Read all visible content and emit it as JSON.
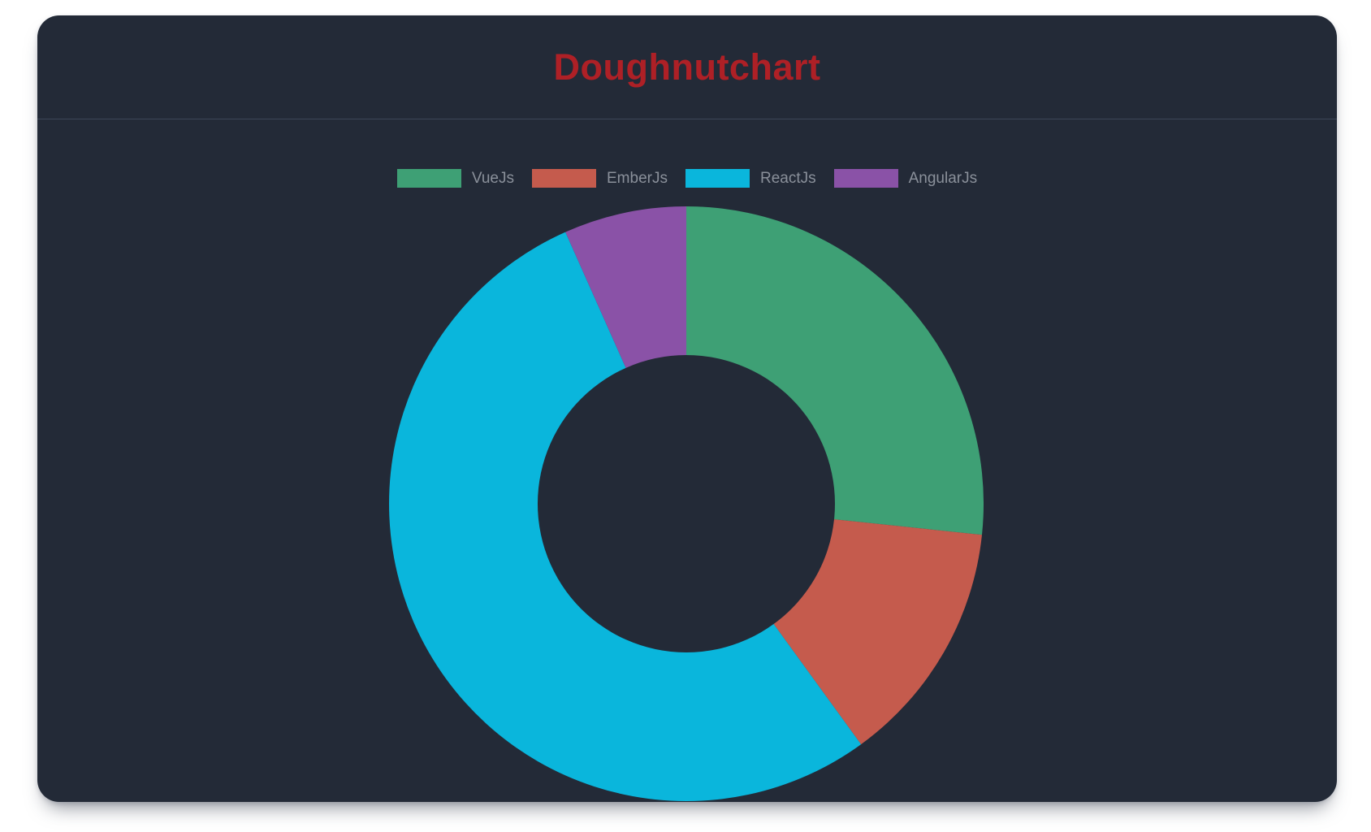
{
  "page": {
    "background_color": "#FFFFFF"
  },
  "card": {
    "background_color": "#232A37",
    "divider_color": "#3D4659",
    "header": {
      "title": "Doughnutchart",
      "title_color": "#AE2026"
    }
  },
  "legend": {
    "text_color": "#8A909A",
    "position": "top",
    "items": [
      {
        "label": "VueJs",
        "color": "#3EA075"
      },
      {
        "label": "EmberJs",
        "color": "#C55B4D"
      },
      {
        "label": "ReactJs",
        "color": "#0AB6DC"
      },
      {
        "label": "AngularJs",
        "color": "#8A52A7"
      }
    ]
  },
  "chart_data": {
    "type": "pie",
    "variant": "doughnut",
    "title": "Doughnutchart",
    "labels": [
      "VueJs",
      "EmberJs",
      "ReactJs",
      "AngularJs"
    ],
    "values": [
      40,
      20,
      80,
      10
    ],
    "total": 150,
    "percentages": [
      26.7,
      13.3,
      53.3,
      6.7
    ],
    "angles_deg": [
      96,
      48,
      192,
      24
    ],
    "colors": [
      "#3EA075",
      "#C55B4D",
      "#0AB6DC",
      "#8A52A7"
    ],
    "start_angle_deg": 0,
    "direction": "clockwise",
    "cutout_ratio": 0.5,
    "slice_border": "none",
    "legend_position": "top",
    "center_text": ""
  }
}
